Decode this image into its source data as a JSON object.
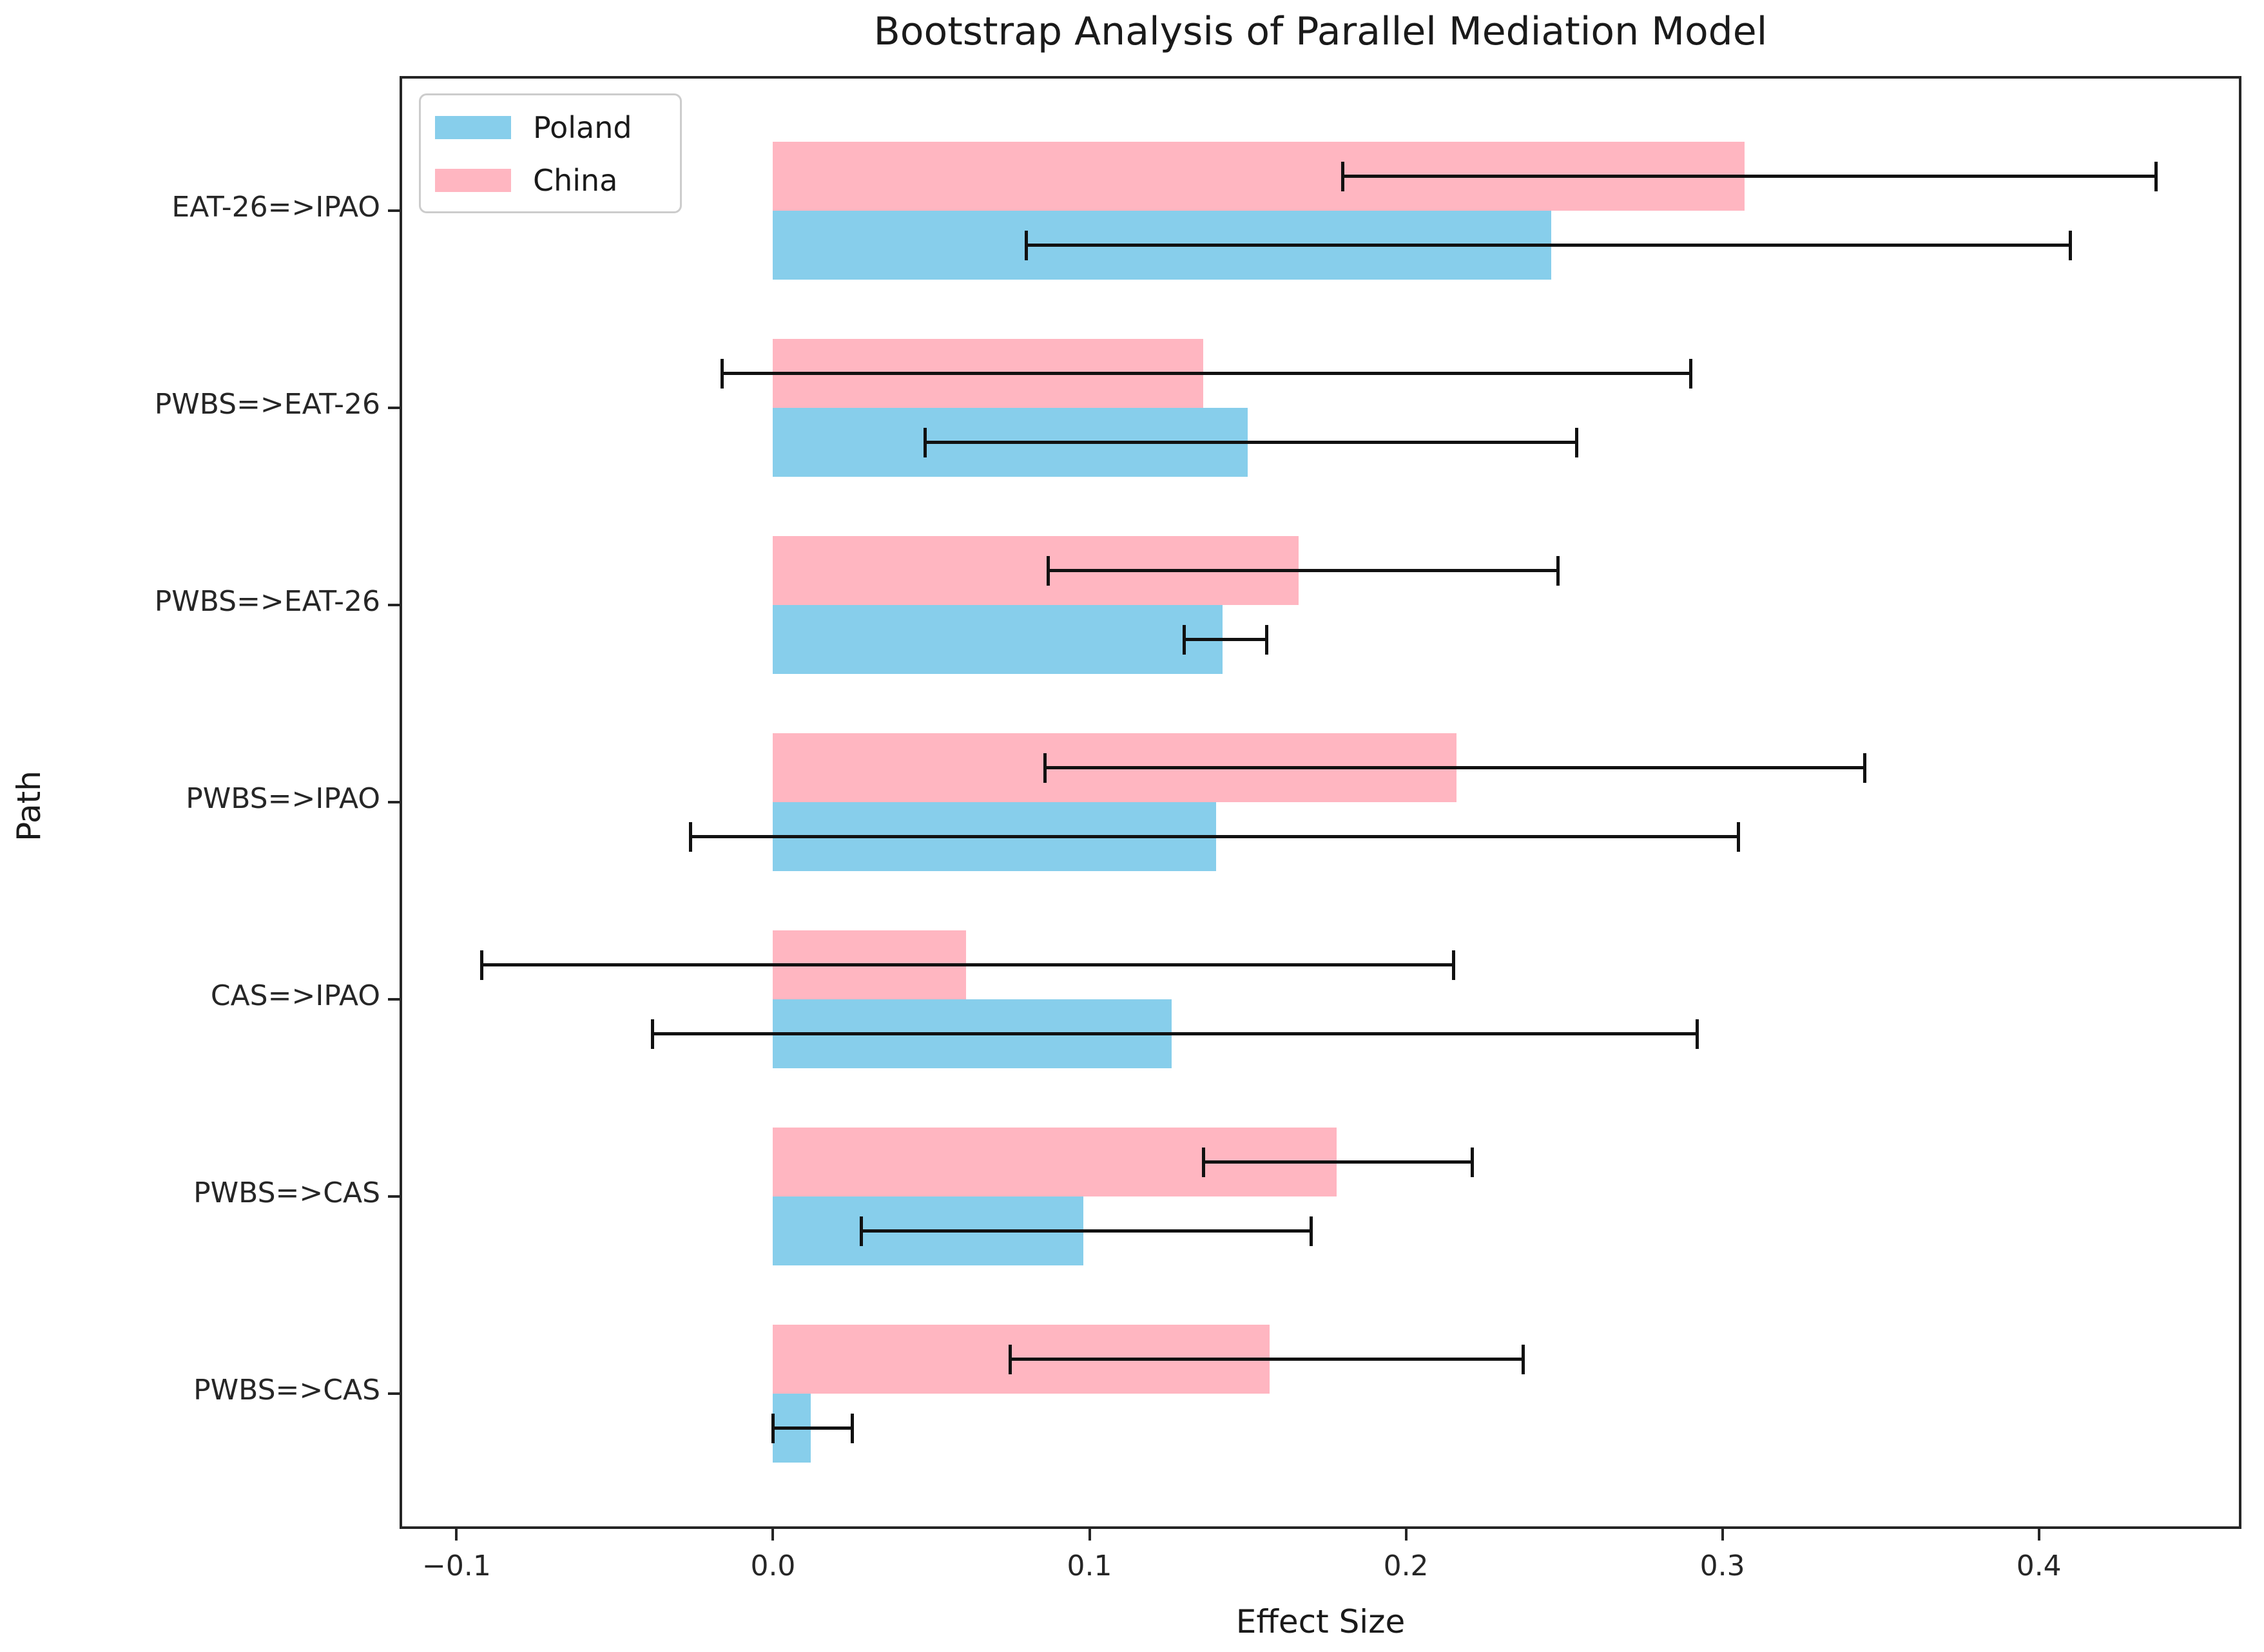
{
  "title": "Bootstrap Analysis of Parallel Mediation Model",
  "x_axis_label": "Effect Size",
  "y_axis_label": "Path",
  "legend": [
    {
      "label": "Poland",
      "color": "#87CEEB"
    },
    {
      "label": "China",
      "color": "#FFB6C1"
    }
  ],
  "colors": {
    "poland": "#87CEEB",
    "china": "#FFB6C1",
    "error_bar": "#111111",
    "spine": "#262626",
    "background": "#ffffff"
  },
  "chart_data": {
    "type": "bar",
    "orientation": "horizontal",
    "title": "Bootstrap Analysis of Parallel Mediation Model",
    "xlabel": "Effect Size",
    "ylabel": "Path",
    "grid": false,
    "legend_position": "upper left",
    "xlim": [
      -0.118,
      0.464
    ],
    "xtick_values": [
      -0.1,
      0.0,
      0.1,
      0.2,
      0.3,
      0.4
    ],
    "xtick_labels": [
      "−0.1",
      "0.0",
      "0.1",
      "0.2",
      "0.3",
      "0.4"
    ],
    "categories": [
      "EAT-26=>IPAO",
      "PWBS=>EAT-26",
      "PWBS=>EAT-26",
      "PWBS=>IPAO",
      "CAS=>IPAO",
      "PWBS=>CAS",
      "PWBS=>CAS"
    ],
    "series": [
      {
        "name": "China",
        "color": "#FFB6C1",
        "position_in_group": "top",
        "values": [
          0.307,
          0.136,
          0.166,
          0.216,
          0.061,
          0.178,
          0.157
        ],
        "ci_low": [
          0.18,
          -0.016,
          0.087,
          0.086,
          -0.092,
          0.136,
          0.075
        ],
        "ci_high": [
          0.437,
          0.29,
          0.248,
          0.345,
          0.215,
          0.221,
          0.237
        ]
      },
      {
        "name": "Poland",
        "color": "#87CEEB",
        "position_in_group": "bottom",
        "values": [
          0.246,
          0.15,
          0.142,
          0.14,
          0.126,
          0.098,
          0.012
        ],
        "ci_low": [
          0.08,
          0.048,
          0.13,
          -0.026,
          -0.038,
          0.028,
          0.0
        ],
        "ci_high": [
          0.41,
          0.254,
          0.156,
          0.305,
          0.292,
          0.17,
          0.025
        ]
      }
    ]
  }
}
